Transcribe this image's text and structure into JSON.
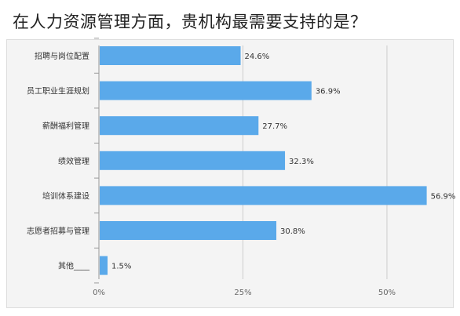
{
  "title": "在人力资源管理方面，贵机构最需要支持的是？",
  "colors": {
    "bar": "#5aa9ea",
    "grid": "#cccccc",
    "axis": "#999999",
    "panel": "#f4f4f4"
  },
  "chart_data": {
    "type": "bar",
    "orientation": "horizontal",
    "categories": [
      "招聘与岗位配置",
      "员工职业生涯规划",
      "薪酬福利管理",
      "绩效管理",
      "培训体系建设",
      "志愿者招募与管理",
      "其他____"
    ],
    "values": [
      24.6,
      36.9,
      27.7,
      32.3,
      56.9,
      30.8,
      1.5
    ],
    "value_labels": [
      "24.6%",
      "36.9%",
      "27.7%",
      "32.3%",
      "56.9%",
      "30.8%",
      "1.5%"
    ],
    "xticks": [
      0,
      25,
      50
    ],
    "xtick_labels": [
      "0%",
      "25%",
      "50%"
    ],
    "xlim": [
      0,
      57.5
    ],
    "grid": true,
    "xlabel": "",
    "ylabel": ""
  }
}
